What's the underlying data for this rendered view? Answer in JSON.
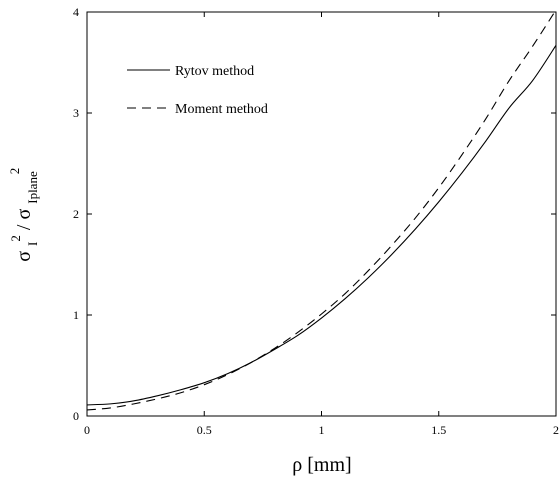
{
  "chart_data": {
    "type": "line",
    "title": "",
    "xlabel": "ρ   [mm]",
    "ylabel": {
      "sigma": "σ",
      "num_sup": "2",
      "num_sub": "I",
      "slash": " / ",
      "den_sup": "2",
      "den_sub": "Iplane"
    },
    "xlim": [
      0,
      2
    ],
    "ylim": [
      0,
      4
    ],
    "xticks": [
      0,
      0.5,
      1,
      1.5,
      2
    ],
    "xtick_labels": [
      "0",
      "0.5",
      "1",
      "1.5",
      "2"
    ],
    "yticks": [
      0,
      1,
      2,
      3,
      4
    ],
    "ytick_labels": [
      "0",
      "1",
      "2",
      "3",
      "4"
    ],
    "grid": false,
    "legend_position": "top-left",
    "series": [
      {
        "name": "Rytov method",
        "style": "solid",
        "x": [
          0,
          0.1,
          0.2,
          0.3,
          0.4,
          0.5,
          0.6,
          0.7,
          0.8,
          0.9,
          1.0,
          1.1,
          1.2,
          1.3,
          1.4,
          1.5,
          1.6,
          1.7,
          1.8,
          1.9,
          2.0
        ],
        "y": [
          0.11,
          0.12,
          0.15,
          0.2,
          0.26,
          0.33,
          0.42,
          0.53,
          0.66,
          0.8,
          0.97,
          1.16,
          1.37,
          1.6,
          1.85,
          2.12,
          2.41,
          2.72,
          3.05,
          3.32,
          3.67
        ]
      },
      {
        "name": "Moment method",
        "style": "dashed",
        "x": [
          0,
          0.1,
          0.2,
          0.3,
          0.4,
          0.5,
          0.6,
          0.7,
          0.8,
          0.9,
          1.0,
          1.1,
          1.2,
          1.3,
          1.4,
          1.5,
          1.6,
          1.7,
          1.8,
          1.9,
          2.0
        ],
        "y": [
          0.06,
          0.08,
          0.12,
          0.17,
          0.23,
          0.31,
          0.41,
          0.53,
          0.67,
          0.83,
          1.01,
          1.21,
          1.44,
          1.69,
          1.96,
          2.26,
          2.59,
          2.94,
          3.32,
          3.66,
          4.02
        ]
      }
    ]
  }
}
